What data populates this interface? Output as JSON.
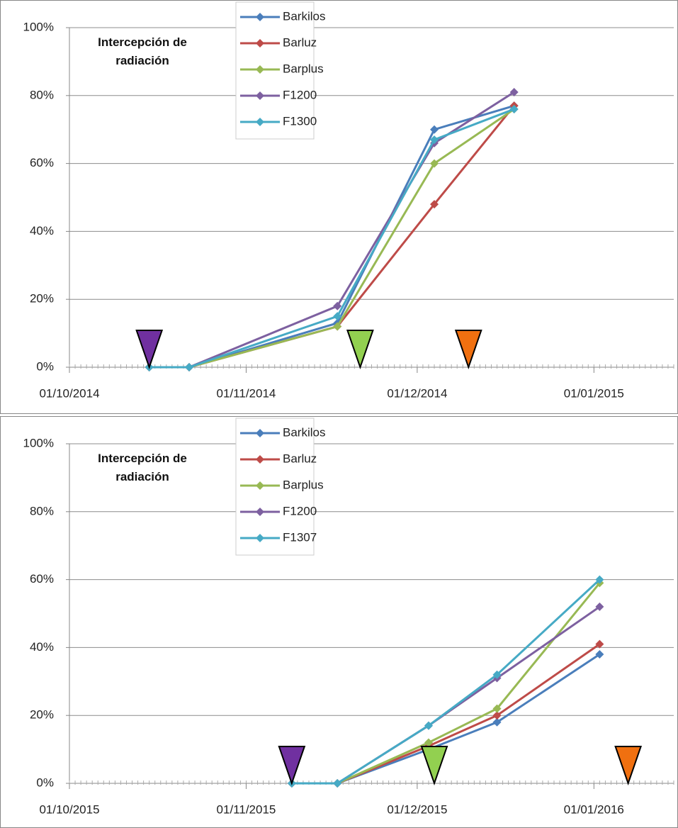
{
  "chart_data": [
    {
      "type": "line",
      "title": "Intercepción de radiación",
      "x": [
        "2014-10-15",
        "2014-10-22",
        "2014-11-17",
        "2014-12-04",
        "2014-12-18"
      ],
      "series": [
        {
          "name": "Barkilos",
          "color": "#4a7ebb",
          "values": [
            0,
            0,
            13,
            70,
            77
          ]
        },
        {
          "name": "Barluz",
          "color": "#be4b48",
          "values": [
            0,
            0,
            12,
            48,
            77
          ]
        },
        {
          "name": "Barplus",
          "color": "#98b954",
          "values": [
            0,
            0,
            12,
            60,
            76
          ]
        },
        {
          "name": "F1200",
          "color": "#7d60a0",
          "values": [
            0,
            0,
            18,
            66,
            81
          ]
        },
        {
          "name": "F1300",
          "color": "#46aac5",
          "values": [
            0,
            0,
            15,
            67,
            76
          ]
        }
      ],
      "events": [
        {
          "x": "2014-10-15",
          "color": "#7030a0"
        },
        {
          "x": "2014-11-21",
          "color": "#92d050"
        },
        {
          "x": "2014-12-10",
          "color": "#f07010"
        }
      ],
      "xlim": [
        "2014-10-01",
        "2015-01-15"
      ],
      "xticks": [
        {
          "value": "2014-10-01",
          "label": "01/10/2014"
        },
        {
          "value": "2014-11-01",
          "label": "01/11/2014"
        },
        {
          "value": "2014-12-01",
          "label": "01/12/2014"
        },
        {
          "value": "2015-01-01",
          "label": "01/01/2015"
        }
      ],
      "ylim": [
        0,
        100
      ],
      "yticks": [
        {
          "value": 0,
          "label": "0%"
        },
        {
          "value": 20,
          "label": "20%"
        },
        {
          "value": 40,
          "label": "40%"
        },
        {
          "value": 60,
          "label": "60%"
        },
        {
          "value": 80,
          "label": "80%"
        },
        {
          "value": 100,
          "label": "100%"
        }
      ],
      "grid": true
    },
    {
      "type": "line",
      "title": "Intercepción de radiación",
      "x": [
        "2015-11-09",
        "2015-11-17",
        "2015-12-03",
        "2015-12-15",
        "2016-01-02"
      ],
      "series": [
        {
          "name": "Barkilos",
          "color": "#4a7ebb",
          "values": [
            0,
            0,
            10,
            18,
            38
          ]
        },
        {
          "name": "Barluz",
          "color": "#be4b48",
          "values": [
            0,
            0,
            11,
            20,
            41
          ]
        },
        {
          "name": "Barplus",
          "color": "#98b954",
          "values": [
            0,
            0,
            12,
            22,
            59
          ]
        },
        {
          "name": "F1200",
          "color": "#7d60a0",
          "values": [
            0,
            0,
            17,
            31,
            52
          ]
        },
        {
          "name": "F1307",
          "color": "#46aac5",
          "values": [
            0,
            0,
            17,
            32,
            60
          ]
        }
      ],
      "events": [
        {
          "x": "2015-11-09",
          "color": "#7030a0"
        },
        {
          "x": "2015-12-04",
          "color": "#92d050"
        },
        {
          "x": "2016-01-07",
          "color": "#f07010"
        }
      ],
      "xlim": [
        "2015-10-01",
        "2016-01-15"
      ],
      "xticks": [
        {
          "value": "2015-10-01",
          "label": "01/10/2015"
        },
        {
          "value": "2015-11-01",
          "label": "01/11/2015"
        },
        {
          "value": "2015-12-01",
          "label": "01/12/2015"
        },
        {
          "value": "2016-01-01",
          "label": "01/01/2016"
        }
      ],
      "ylim": [
        0,
        100
      ],
      "yticks": [
        {
          "value": 0,
          "label": "0%"
        },
        {
          "value": 20,
          "label": "20%"
        },
        {
          "value": 40,
          "label": "40%"
        },
        {
          "value": 60,
          "label": "60%"
        },
        {
          "value": 80,
          "label": "80%"
        },
        {
          "value": 100,
          "label": "100%"
        }
      ],
      "grid": true
    }
  ]
}
